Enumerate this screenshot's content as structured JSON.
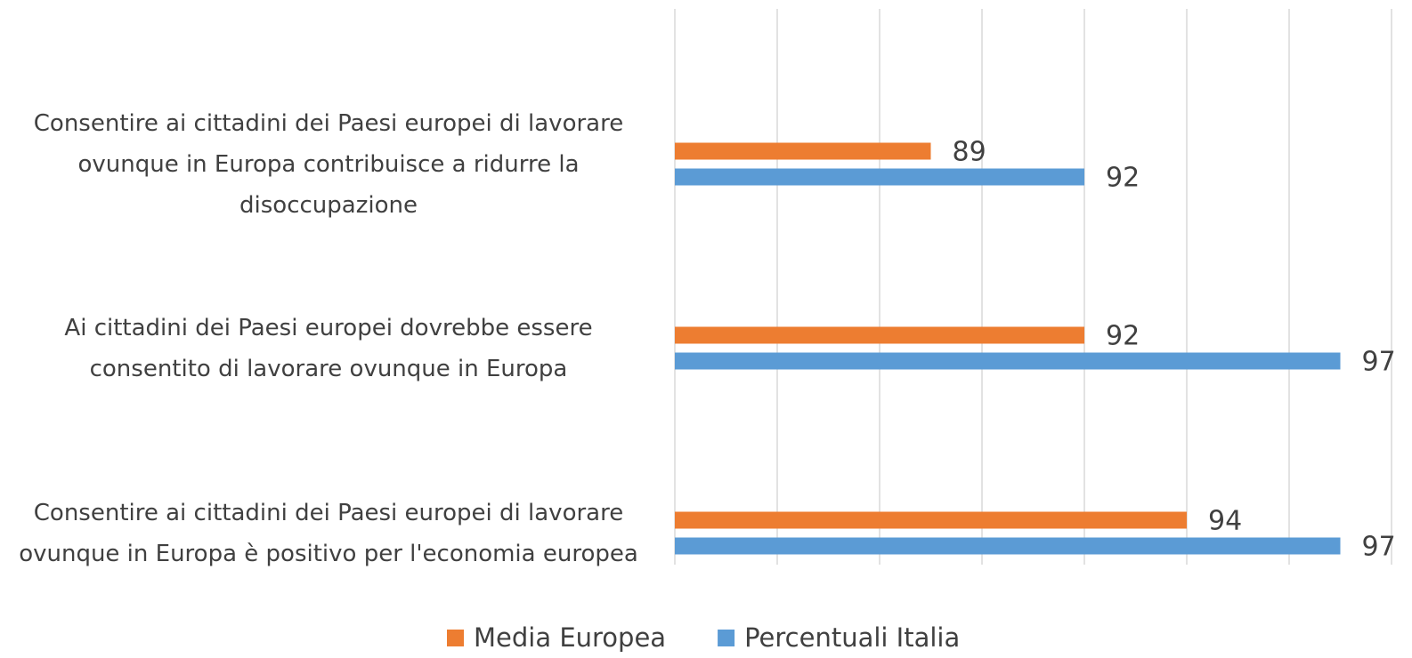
{
  "chart_data": {
    "type": "barh",
    "categories": [
      "Consentire ai cittadini dei Paesi europei di lavorare ovunque in Europa contribuisce a ridurre la disoccupazione",
      "Ai cittadini dei Paesi europei dovrebbe essere consentito di lavorare ovunque in Europa",
      "Consentire ai cittadini dei Paesi europei di lavorare ovunque in Europa è positivo per l'economia europea"
    ],
    "series": [
      {
        "name": "Media Europea",
        "color": "#ED7D31",
        "values": [
          89,
          92,
          94
        ]
      },
      {
        "name": "Percentuali Italia",
        "color": "#5B9BD5",
        "values": [
          92,
          97,
          97
        ]
      }
    ],
    "xlim": [
      84,
      98
    ],
    "xticks": [
      84,
      86,
      88,
      90,
      92,
      94,
      96,
      98
    ],
    "grid": true,
    "legend": "bottom"
  }
}
